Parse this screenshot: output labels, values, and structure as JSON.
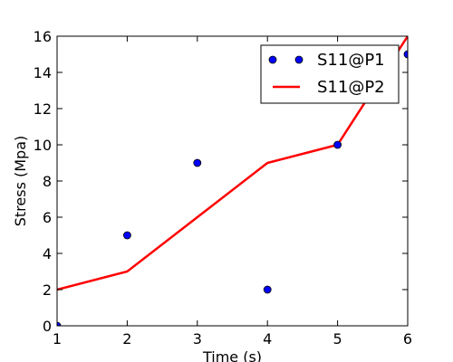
{
  "chart_data": {
    "type": "line",
    "x": [
      1,
      2,
      3,
      4,
      5,
      6
    ],
    "series": [
      {
        "name": "S11@P1",
        "style": "markers",
        "color": "#0000ff",
        "values": [
          0,
          5,
          9,
          2,
          10,
          15
        ]
      },
      {
        "name": "S11@P2",
        "style": "line",
        "color": "#ff0000",
        "values": [
          2,
          3,
          6,
          9,
          10,
          16
        ]
      }
    ],
    "xlabel": "Time (s)",
    "ylabel": "Stress (Mpa)",
    "xlim": [
      1,
      6
    ],
    "ylim": [
      0,
      16
    ],
    "xticks": [
      "1",
      "2",
      "3",
      "4",
      "5",
      "6"
    ],
    "yticks": [
      "0",
      "2",
      "4",
      "6",
      "8",
      "10",
      "12",
      "14",
      "16"
    ],
    "grid": false,
    "legend_position": "top-right"
  }
}
